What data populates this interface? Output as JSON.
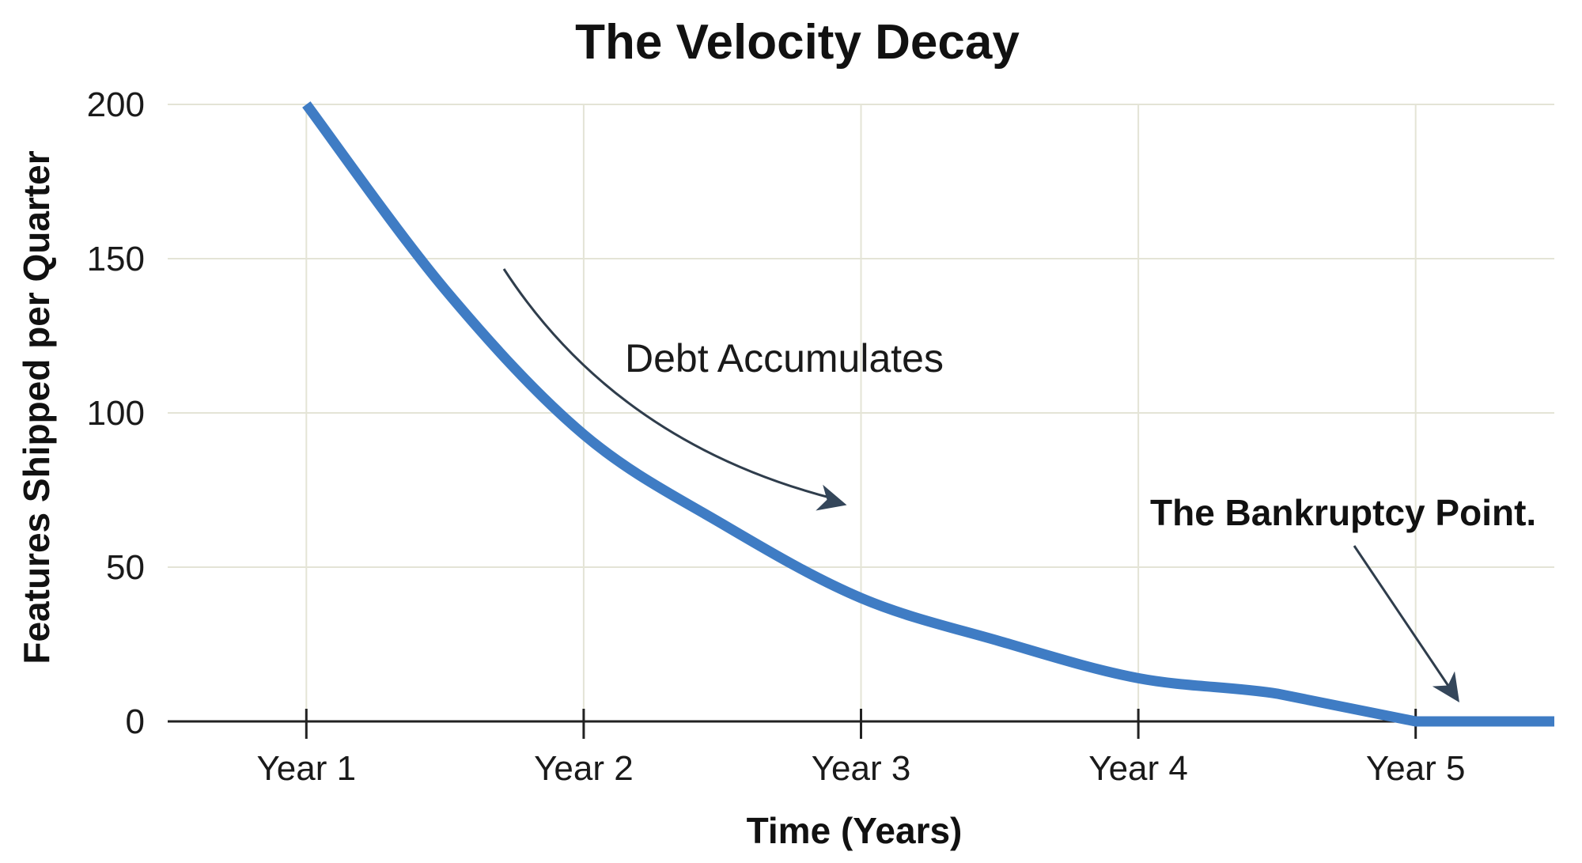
{
  "chart_data": {
    "type": "line",
    "title": "The Velocity Decay",
    "xlabel": "Time (Years)",
    "ylabel": "Features Shipped per Quarter",
    "categories": [
      "Year 1",
      "Year 2",
      "Year 3",
      "Year 4",
      "Year 5"
    ],
    "xlim": [
      0.5,
      5.5
    ],
    "ylim": [
      0,
      200
    ],
    "yticks": [
      "0",
      "50",
      "100",
      "150",
      "200"
    ],
    "grid": true,
    "series": [
      {
        "color": "#3f7cc4",
        "x": [
          1,
          1.5,
          2,
          2.5,
          3,
          3.5,
          4,
          4.5,
          5,
          5.5
        ],
        "values": [
          200,
          140,
          93,
          64,
          40,
          26,
          14,
          9,
          0,
          0
        ]
      }
    ],
    "annotations": [
      {
        "text": "Debt Accumulates",
        "arrow_to": {
          "x": 3.0,
          "y": 65
        }
      },
      {
        "text": "The Bankruptcy Point.",
        "arrow_to": {
          "x": 5.15,
          "y": 6
        }
      }
    ],
    "colors": {
      "line": "#3f7cc4",
      "arrow": "#34465a",
      "grid": "#e4e4d6",
      "axis": "#222222"
    }
  }
}
